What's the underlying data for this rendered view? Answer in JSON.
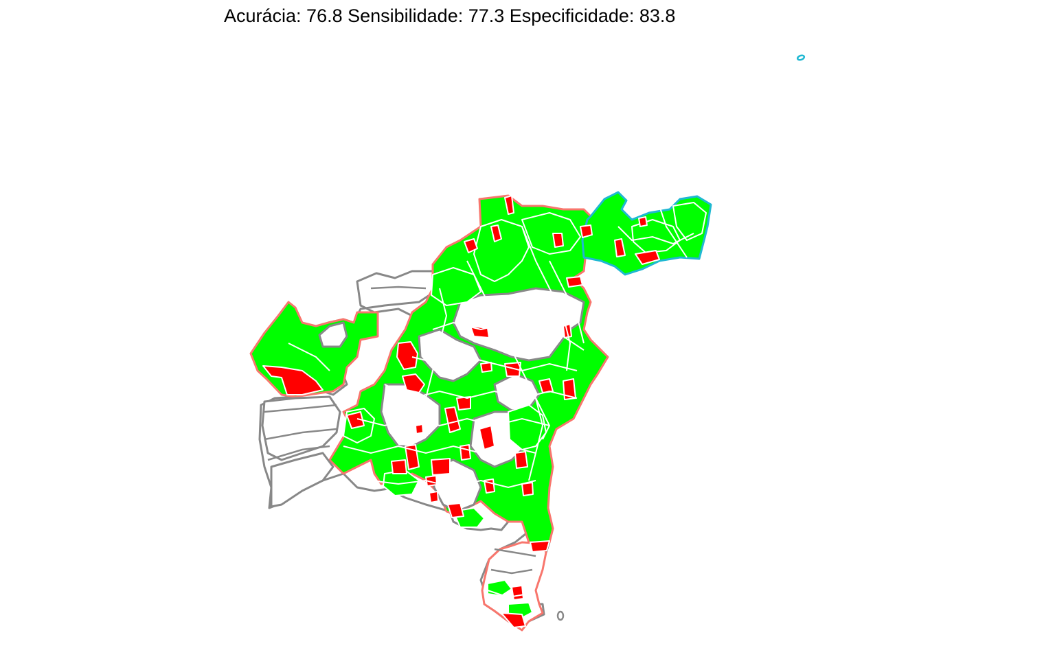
{
  "plot": {
    "title": "Acurácia: 76.8 Sensibilidade: 77.3 Especificidade: 83.8",
    "metrics": {
      "accuracy": 76.8,
      "sensitivity": 77.3,
      "specificity": 83.8
    }
  },
  "colors": {
    "hit": "#00ff00",
    "miss": "#ff0000",
    "region_a_outline": "#1fb8d2",
    "region_b_outline": "#f8766d",
    "region_c_outline": "#888888",
    "municipality_border": "#ffffff",
    "background": "#ffffff"
  }
}
